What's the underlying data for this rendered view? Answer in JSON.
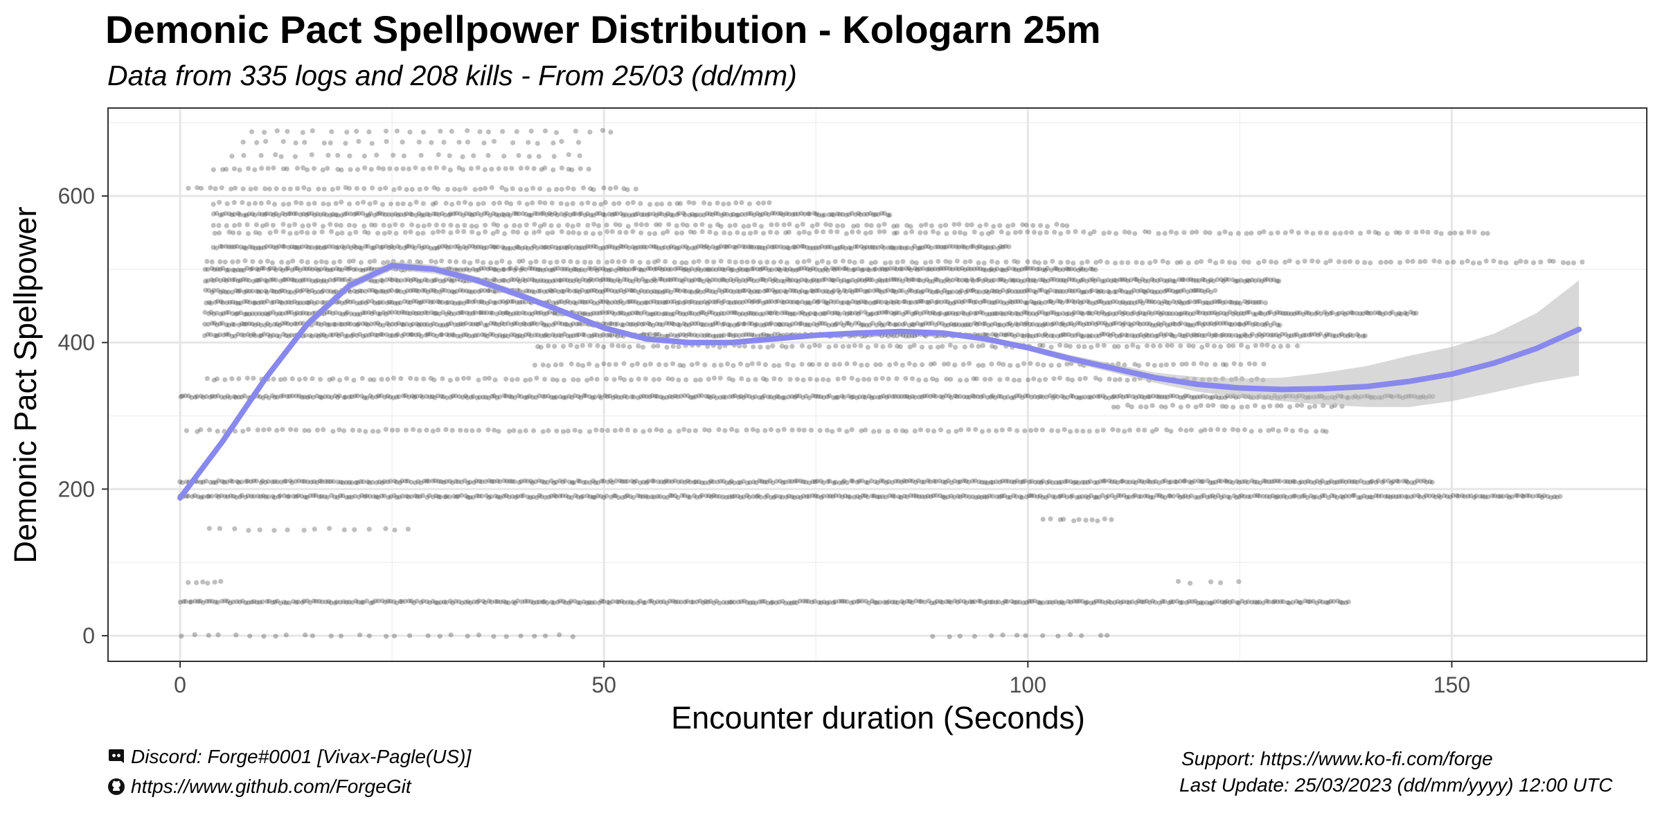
{
  "chart_data": {
    "type": "scatter",
    "title": "Demonic Pact Spellpower Distribution - Kologarn 25m",
    "subtitle": "Data from 335 logs and 208 kills - From 25/03 (dd/mm)",
    "xlabel": "Encounter duration (Seconds)",
    "ylabel": "Demonic Pact Spellpower",
    "xlim": [
      -8.5,
      173
    ],
    "ylim": [
      -35,
      720
    ],
    "xticks": [
      0,
      50,
      100,
      150
    ],
    "yticks": [
      0,
      200,
      400,
      600
    ],
    "grid": true,
    "point_color": "#000000",
    "point_opacity": 0.25,
    "trend_color": "#8888ee",
    "band_color": "#bebebe",
    "scatter_bands": [
      {
        "y": 0,
        "x_start": 0,
        "x_end": 47,
        "density": "sparse"
      },
      {
        "y": 0,
        "x_start": 89,
        "x_end": 110,
        "density": "sparse"
      },
      {
        "y": 46,
        "x_start": 0,
        "x_end": 138,
        "density": "dense"
      },
      {
        "y": 73,
        "x_start": 1,
        "x_end": 5,
        "density": "medium"
      },
      {
        "y": 73,
        "x_start": 118,
        "x_end": 125,
        "density": "sparse"
      },
      {
        "y": 145,
        "x_start": 3,
        "x_end": 28,
        "density": "sparse"
      },
      {
        "y": 158,
        "x_start": 102,
        "x_end": 110,
        "density": "medium"
      },
      {
        "y": 190,
        "x_start": 0,
        "x_end": 163,
        "density": "dense"
      },
      {
        "y": 210,
        "x_start": 0,
        "x_end": 148,
        "density": "dense"
      },
      {
        "y": 280,
        "x_start": 1,
        "x_end": 136,
        "density": "medium"
      },
      {
        "y": 313,
        "x_start": 110,
        "x_end": 138,
        "density": "medium"
      },
      {
        "y": 326,
        "x_start": 0,
        "x_end": 148,
        "density": "dense"
      },
      {
        "y": 350,
        "x_start": 3,
        "x_end": 128,
        "density": "medium"
      },
      {
        "y": 370,
        "x_start": 42,
        "x_end": 128,
        "density": "medium"
      },
      {
        "y": 395,
        "x_start": 42,
        "x_end": 132,
        "density": "medium"
      },
      {
        "y": 410,
        "x_start": 3,
        "x_end": 140,
        "density": "dense"
      },
      {
        "y": 425,
        "x_start": 3,
        "x_end": 130,
        "density": "dense"
      },
      {
        "y": 440,
        "x_start": 3,
        "x_end": 146,
        "density": "dense"
      },
      {
        "y": 455,
        "x_start": 3,
        "x_end": 128,
        "density": "dense"
      },
      {
        "y": 470,
        "x_start": 3,
        "x_end": 122,
        "density": "dense"
      },
      {
        "y": 485,
        "x_start": 3,
        "x_end": 130,
        "density": "dense"
      },
      {
        "y": 500,
        "x_start": 3,
        "x_end": 108,
        "density": "dense"
      },
      {
        "y": 510,
        "x_start": 3,
        "x_end": 166,
        "density": "medium"
      },
      {
        "y": 530,
        "x_start": 4,
        "x_end": 98,
        "density": "dense"
      },
      {
        "y": 550,
        "x_start": 4,
        "x_end": 155,
        "density": "medium"
      },
      {
        "y": 560,
        "x_start": 4,
        "x_end": 105,
        "density": "medium"
      },
      {
        "y": 575,
        "x_start": 4,
        "x_end": 84,
        "density": "dense"
      },
      {
        "y": 590,
        "x_start": 4,
        "x_end": 70,
        "density": "medium"
      },
      {
        "y": 610,
        "x_start": 1,
        "x_end": 54,
        "density": "medium"
      },
      {
        "y": 637,
        "x_start": 4,
        "x_end": 48,
        "density": "medium"
      },
      {
        "y": 655,
        "x_start": 6,
        "x_end": 48,
        "density": "sparse"
      },
      {
        "y": 673,
        "x_start": 7,
        "x_end": 48,
        "density": "sparse"
      },
      {
        "y": 688,
        "x_start": 8,
        "x_end": 52,
        "density": "sparse"
      }
    ],
    "trend": {
      "x": [
        0,
        5,
        10,
        15,
        20,
        25,
        30,
        35,
        40,
        45,
        50,
        55,
        60,
        65,
        70,
        75,
        80,
        85,
        90,
        95,
        100,
        105,
        110,
        115,
        120,
        125,
        130,
        135,
        140,
        145,
        150,
        155,
        160,
        165
      ],
      "y": [
        188,
        265,
        350,
        425,
        478,
        505,
        500,
        485,
        465,
        443,
        420,
        405,
        400,
        400,
        405,
        410,
        413,
        415,
        413,
        405,
        393,
        378,
        365,
        352,
        343,
        338,
        336,
        337,
        340,
        347,
        357,
        372,
        392,
        418
      ],
      "lower": [
        183,
        259,
        344,
        419,
        472,
        499,
        494,
        480,
        460,
        439,
        416,
        401,
        397,
        397,
        402,
        407,
        410,
        412,
        410,
        402,
        389,
        373,
        359,
        345,
        333,
        325,
        320,
        315,
        312,
        312,
        320,
        332,
        345,
        355
      ],
      "upper": [
        193,
        271,
        356,
        431,
        484,
        511,
        506,
        490,
        470,
        447,
        424,
        409,
        403,
        403,
        408,
        413,
        416,
        418,
        416,
        408,
        397,
        383,
        371,
        359,
        353,
        351,
        352,
        359,
        368,
        382,
        394,
        412,
        440,
        485
      ]
    }
  },
  "footer": {
    "discord": "Discord: Forge#0001 [Vivax-Pagle(US)]",
    "github": "https://www.github.com/ForgeGit",
    "support": "Support: https://www.ko-fi.com/forge",
    "last_update": "Last Update: 25/03/2023 (dd/mm/yyyy) 12:00 UTC"
  },
  "icons": {
    "discord": "discord-icon",
    "github": "github-icon"
  }
}
